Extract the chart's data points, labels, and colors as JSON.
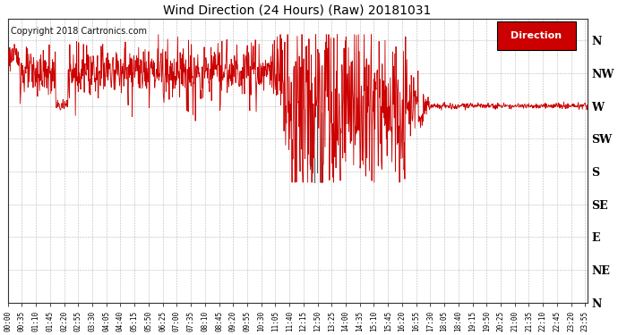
{
  "title": "Wind Direction (24 Hours) (Raw) 20181031",
  "copyright": "Copyright 2018 Cartronics.com",
  "legend_label": "Direction",
  "legend_bg": "#cc0000",
  "legend_text_color": "#ffffff",
  "line_color": "#cc0000",
  "line_color2": "#555555",
  "background_color": "#ffffff",
  "grid_color": "#999999",
  "ytick_labels": [
    "N",
    "NW",
    "W",
    "SW",
    "S",
    "SE",
    "E",
    "NE",
    "N"
  ],
  "ytick_values": [
    360,
    315,
    270,
    225,
    180,
    135,
    90,
    45,
    0
  ],
  "ylim": [
    0,
    390
  ],
  "figsize": [
    6.9,
    3.75
  ],
  "dpi": 100
}
